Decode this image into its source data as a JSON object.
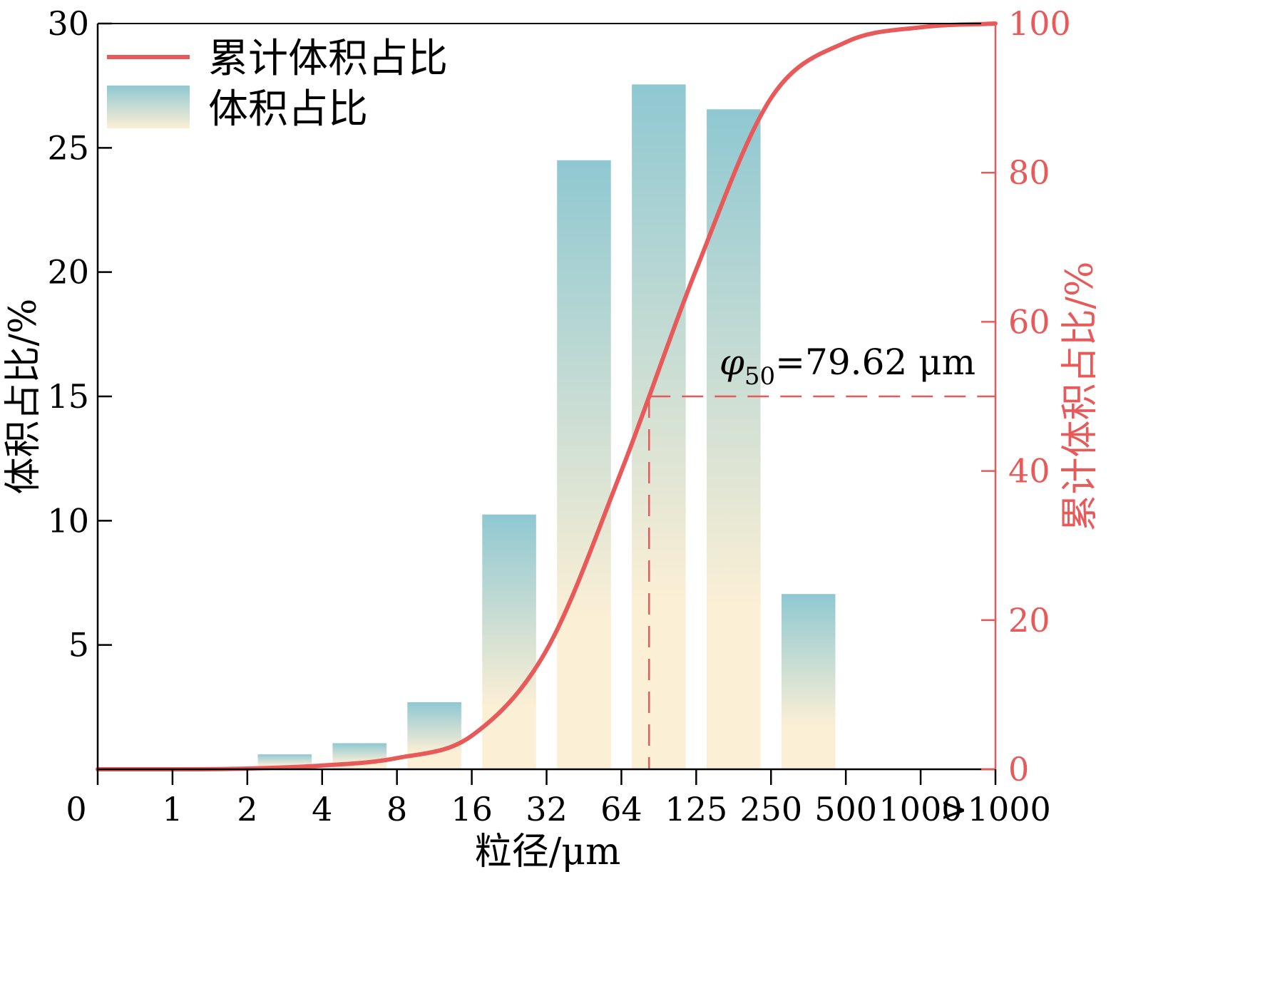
{
  "colors": {
    "curve": "#e85a5a",
    "bar_top": "#8fc8d2",
    "bar_bottom": "#fbefd5",
    "axis": "#000000",
    "right_axis": "#e85a5a"
  },
  "chart_data": {
    "type": "bar",
    "xlabel": "粒径/μm",
    "ylabel": "体积占比/%",
    "y2label": "累计体积占比/%",
    "x_boundaries": [
      "0",
      "1",
      "2",
      "4",
      "8",
      "16",
      "32",
      "64",
      "125",
      "250",
      "500",
      "1000",
      ">1000"
    ],
    "ylim": [
      0,
      30
    ],
    "y_ticks": [
      "5",
      "10",
      "15",
      "20",
      "25",
      "30"
    ],
    "y2lim": [
      0,
      100
    ],
    "y2_ticks": [
      "0",
      "20",
      "40",
      "60",
      "80",
      "100"
    ],
    "legend_position": "top-left",
    "series": [
      {
        "name": "体积占比",
        "type": "bar",
        "bins": [
          {
            "from": "0",
            "to": "1",
            "value": 0
          },
          {
            "from": "1",
            "to": "2",
            "value": 0
          },
          {
            "from": "2",
            "to": "4",
            "value": 0.6
          },
          {
            "from": "4",
            "to": "8",
            "value": 1.05
          },
          {
            "from": "8",
            "to": "16",
            "value": 2.7
          },
          {
            "from": "16",
            "to": "32",
            "value": 10.25
          },
          {
            "from": "32",
            "to": "64",
            "value": 24.5
          },
          {
            "from": "64",
            "to": "125",
            "value": 27.55
          },
          {
            "from": "125",
            "to": "250",
            "value": 26.55
          },
          {
            "from": "250",
            "to": "500",
            "value": 7.05
          },
          {
            "from": "500",
            "to": "1000",
            "value": 0
          },
          {
            "from": "1000",
            "to": ">1000",
            "value": 0
          }
        ]
      },
      {
        "name": "累计体积占比",
        "type": "line",
        "points": [
          {
            "x": "0",
            "y": 0
          },
          {
            "x": "1",
            "y": 0
          },
          {
            "x": "2",
            "y": 0.1
          },
          {
            "x": "4",
            "y": 0.5
          },
          {
            "x": "8",
            "y": 1.5
          },
          {
            "x": "16",
            "y": 4.5
          },
          {
            "x": "32",
            "y": 16
          },
          {
            "x": "64",
            "y": 40
          },
          {
            "x": "125",
            "y": 67
          },
          {
            "x": "250",
            "y": 90
          },
          {
            "x": "500",
            "y": 97.5
          },
          {
            "x": "1000",
            "y": 99.5
          },
          {
            "x": ">1000",
            "y": 100
          }
        ]
      }
    ],
    "annotation": {
      "symbol": "φ",
      "subscript": "50",
      "text": "=79.62 μm",
      "level": 50
    }
  }
}
